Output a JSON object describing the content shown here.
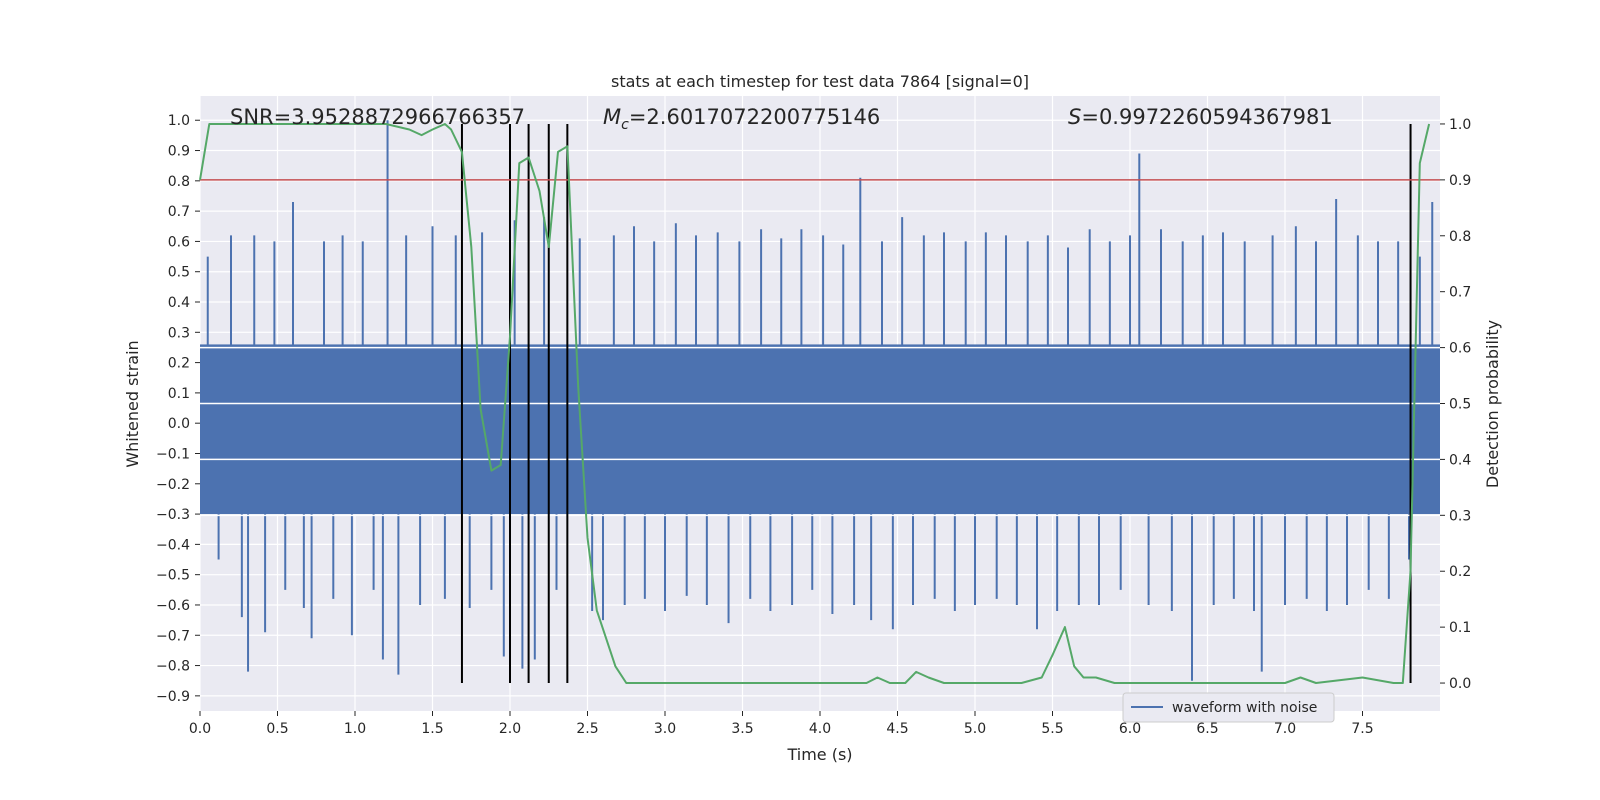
{
  "chart_data": {
    "type": "line",
    "title": "stats at each timestep for test data 7864 [signal=0]",
    "xlabel": "Time (s)",
    "ylabel": "Whitened strain",
    "ylabel_right": "Detection probability",
    "xlim": [
      0.0,
      8.0
    ],
    "ylim": [
      -0.95,
      1.08
    ],
    "ylim_right": [
      -0.05,
      1.05
    ],
    "x_ticks": [
      0.0,
      0.5,
      1.0,
      1.5,
      2.0,
      2.5,
      3.0,
      3.5,
      4.0,
      4.5,
      5.0,
      5.5,
      6.0,
      6.5,
      7.0,
      7.5
    ],
    "x_tick_labels": [
      "0.0",
      "0.5",
      "1.0",
      "1.5",
      "2.0",
      "2.5",
      "3.0",
      "3.5",
      "4.0",
      "4.5",
      "5.0",
      "5.5",
      "6.0",
      "6.5",
      "7.0",
      "7.5"
    ],
    "y_ticks": [
      1.0,
      0.9,
      0.8,
      0.7,
      0.6,
      0.5,
      0.4,
      0.3,
      0.2,
      0.1,
      0.0,
      -0.1,
      -0.2,
      -0.3,
      -0.4,
      -0.5,
      -0.6,
      -0.7,
      -0.8,
      -0.9
    ],
    "y_tick_labels": [
      "1.0",
      "0.9",
      "0.8",
      "0.7",
      "0.6",
      "0.5",
      "0.4",
      "0.3",
      "0.2",
      "0.1",
      "0.0",
      "−0.1",
      "−0.2",
      "−0.3",
      "−0.4",
      "−0.5",
      "−0.6",
      "−0.7",
      "−0.8",
      "−0.9"
    ],
    "y_right_ticks": [
      1.0,
      0.9,
      0.8,
      0.7,
      0.6,
      0.5,
      0.4,
      0.3,
      0.2,
      0.1,
      0.0
    ],
    "y_right_tick_labels": [
      "1.0",
      "0.9",
      "0.8",
      "0.7",
      "0.6",
      "0.5",
      "0.4",
      "0.3",
      "0.2",
      "0.1",
      "0.0"
    ],
    "grid": true,
    "annotations": {
      "snr": "SNR=3.9528872966766357",
      "mc_symbol": "M",
      "mc_subscript": "c",
      "mc_value": "=2.6017072200775146",
      "s_symbol": "S",
      "s_value": "=0.9972260594367981"
    },
    "legend": {
      "location": "lower-right",
      "entries": [
        "waveform with noise"
      ]
    },
    "threshold_right": 0.9,
    "vertical_lines_x": [
      1.69,
      2.0,
      2.12,
      2.25,
      2.37,
      7.81
    ],
    "waveform": {
      "name": "waveform with noise",
      "dense_band": [
        -0.3,
        0.26
      ],
      "spikes": [
        {
          "x": 0.05,
          "y": 0.55
        },
        {
          "x": 0.12,
          "y": -0.45
        },
        {
          "x": 0.2,
          "y": 0.62
        },
        {
          "x": 0.27,
          "y": -0.64
        },
        {
          "x": 0.31,
          "y": -0.82
        },
        {
          "x": 0.35,
          "y": 0.62
        },
        {
          "x": 0.42,
          "y": -0.69
        },
        {
          "x": 0.48,
          "y": 0.6
        },
        {
          "x": 0.55,
          "y": -0.55
        },
        {
          "x": 0.6,
          "y": 0.73
        },
        {
          "x": 0.67,
          "y": -0.61
        },
        {
          "x": 0.72,
          "y": -0.71
        },
        {
          "x": 0.8,
          "y": 0.6
        },
        {
          "x": 0.86,
          "y": -0.58
        },
        {
          "x": 0.92,
          "y": 0.62
        },
        {
          "x": 0.98,
          "y": -0.7
        },
        {
          "x": 1.05,
          "y": 0.6
        },
        {
          "x": 1.12,
          "y": -0.55
        },
        {
          "x": 1.18,
          "y": -0.78
        },
        {
          "x": 1.21,
          "y": 1.0
        },
        {
          "x": 1.28,
          "y": -0.83
        },
        {
          "x": 1.33,
          "y": 0.62
        },
        {
          "x": 1.42,
          "y": -0.6
        },
        {
          "x": 1.5,
          "y": 0.65
        },
        {
          "x": 1.58,
          "y": -0.58
        },
        {
          "x": 1.65,
          "y": 0.62
        },
        {
          "x": 1.74,
          "y": -0.61
        },
        {
          "x": 1.82,
          "y": 0.63
        },
        {
          "x": 1.88,
          "y": -0.55
        },
        {
          "x": 1.96,
          "y": -0.77
        },
        {
          "x": 2.03,
          "y": 0.67
        },
        {
          "x": 2.08,
          "y": -0.81
        },
        {
          "x": 2.16,
          "y": -0.78
        },
        {
          "x": 2.22,
          "y": 0.68
        },
        {
          "x": 2.3,
          "y": -0.55
        },
        {
          "x": 2.45,
          "y": 0.61
        },
        {
          "x": 2.53,
          "y": -0.62
        },
        {
          "x": 2.6,
          "y": -0.65
        },
        {
          "x": 2.67,
          "y": 0.62
        },
        {
          "x": 2.74,
          "y": -0.6
        },
        {
          "x": 2.8,
          "y": 0.65
        },
        {
          "x": 2.87,
          "y": -0.58
        },
        {
          "x": 2.93,
          "y": 0.6
        },
        {
          "x": 3.0,
          "y": -0.62
        },
        {
          "x": 3.07,
          "y": 0.66
        },
        {
          "x": 3.14,
          "y": -0.57
        },
        {
          "x": 3.2,
          "y": 0.62
        },
        {
          "x": 3.27,
          "y": -0.6
        },
        {
          "x": 3.34,
          "y": 0.63
        },
        {
          "x": 3.41,
          "y": -0.66
        },
        {
          "x": 3.48,
          "y": 0.6
        },
        {
          "x": 3.55,
          "y": -0.58
        },
        {
          "x": 3.62,
          "y": 0.64
        },
        {
          "x": 3.68,
          "y": -0.62
        },
        {
          "x": 3.75,
          "y": 0.61
        },
        {
          "x": 3.82,
          "y": -0.6
        },
        {
          "x": 3.88,
          "y": 0.64
        },
        {
          "x": 3.95,
          "y": -0.55
        },
        {
          "x": 4.02,
          "y": 0.62
        },
        {
          "x": 4.08,
          "y": -0.63
        },
        {
          "x": 4.15,
          "y": 0.59
        },
        {
          "x": 4.22,
          "y": -0.6
        },
        {
          "x": 4.26,
          "y": 0.81
        },
        {
          "x": 4.33,
          "y": -0.65
        },
        {
          "x": 4.4,
          "y": 0.6
        },
        {
          "x": 4.47,
          "y": -0.68
        },
        {
          "x": 4.53,
          "y": 0.68
        },
        {
          "x": 4.6,
          "y": -0.6
        },
        {
          "x": 4.67,
          "y": 0.62
        },
        {
          "x": 4.74,
          "y": -0.58
        },
        {
          "x": 4.8,
          "y": 0.63
        },
        {
          "x": 4.87,
          "y": -0.62
        },
        {
          "x": 4.94,
          "y": 0.6
        },
        {
          "x": 5.0,
          "y": -0.6
        },
        {
          "x": 5.07,
          "y": 0.63
        },
        {
          "x": 5.14,
          "y": -0.58
        },
        {
          "x": 5.2,
          "y": 0.62
        },
        {
          "x": 5.27,
          "y": -0.6
        },
        {
          "x": 5.34,
          "y": 0.6
        },
        {
          "x": 5.4,
          "y": -0.68
        },
        {
          "x": 5.47,
          "y": 0.62
        },
        {
          "x": 5.53,
          "y": -0.62
        },
        {
          "x": 5.6,
          "y": 0.58
        },
        {
          "x": 5.67,
          "y": -0.6
        },
        {
          "x": 5.74,
          "y": 0.64
        },
        {
          "x": 5.8,
          "y": -0.6
        },
        {
          "x": 5.87,
          "y": 0.6
        },
        {
          "x": 5.94,
          "y": -0.55
        },
        {
          "x": 6.0,
          "y": 0.62
        },
        {
          "x": 6.06,
          "y": 0.89
        },
        {
          "x": 6.12,
          "y": -0.6
        },
        {
          "x": 6.2,
          "y": 0.64
        },
        {
          "x": 6.27,
          "y": -0.62
        },
        {
          "x": 6.34,
          "y": 0.6
        },
        {
          "x": 6.4,
          "y": -0.85
        },
        {
          "x": 6.47,
          "y": 0.62
        },
        {
          "x": 6.54,
          "y": -0.6
        },
        {
          "x": 6.6,
          "y": 0.63
        },
        {
          "x": 6.67,
          "y": -0.58
        },
        {
          "x": 6.74,
          "y": 0.6
        },
        {
          "x": 6.8,
          "y": -0.62
        },
        {
          "x": 6.85,
          "y": -0.82
        },
        {
          "x": 6.92,
          "y": 0.62
        },
        {
          "x": 7.0,
          "y": -0.6
        },
        {
          "x": 7.07,
          "y": 0.65
        },
        {
          "x": 7.14,
          "y": -0.58
        },
        {
          "x": 7.2,
          "y": 0.6
        },
        {
          "x": 7.27,
          "y": -0.62
        },
        {
          "x": 7.33,
          "y": 0.74
        },
        {
          "x": 7.4,
          "y": -0.6
        },
        {
          "x": 7.47,
          "y": 0.62
        },
        {
          "x": 7.54,
          "y": -0.55
        },
        {
          "x": 7.6,
          "y": 0.6
        },
        {
          "x": 7.67,
          "y": -0.58
        },
        {
          "x": 7.73,
          "y": 0.6
        },
        {
          "x": 7.8,
          "y": -0.45
        },
        {
          "x": 7.87,
          "y": 0.55
        },
        {
          "x": 7.95,
          "y": 0.73
        }
      ]
    },
    "detection_probability": {
      "x": [
        0.0,
        0.06,
        0.12,
        0.2,
        0.3,
        0.5,
        0.8,
        1.0,
        1.2,
        1.35,
        1.43,
        1.5,
        1.58,
        1.62,
        1.69,
        1.75,
        1.81,
        1.88,
        1.94,
        2.0,
        2.06,
        2.12,
        2.19,
        2.25,
        2.31,
        2.37,
        2.44,
        2.5,
        2.56,
        2.62,
        2.68,
        2.75,
        2.85,
        3.0,
        3.2,
        3.5,
        4.0,
        4.3,
        4.37,
        4.45,
        4.55,
        4.62,
        4.7,
        4.8,
        5.0,
        5.3,
        5.43,
        5.5,
        5.58,
        5.64,
        5.7,
        5.78,
        5.9,
        6.0,
        6.5,
        7.0,
        7.1,
        7.2,
        7.5,
        7.7,
        7.76,
        7.81,
        7.87,
        7.93
      ],
      "y": [
        0.9,
        1.0,
        1.0,
        1.0,
        1.0,
        1.0,
        1.0,
        1.0,
        1.0,
        0.99,
        0.98,
        0.99,
        1.0,
        0.99,
        0.95,
        0.78,
        0.49,
        0.38,
        0.39,
        0.62,
        0.93,
        0.94,
        0.88,
        0.78,
        0.95,
        0.96,
        0.53,
        0.26,
        0.13,
        0.08,
        0.03,
        0.0,
        0.0,
        0.0,
        0.0,
        0.0,
        0.0,
        0.0,
        0.01,
        0.0,
        0.0,
        0.02,
        0.01,
        0.0,
        0.0,
        0.0,
        0.01,
        0.05,
        0.1,
        0.03,
        0.01,
        0.01,
        0.0,
        0.0,
        0.0,
        0.0,
        0.01,
        0.0,
        0.01,
        0.0,
        0.0,
        0.2,
        0.93,
        1.0
      ]
    },
    "colors": {
      "background": "#eaeaf2",
      "grid": "#ffffff",
      "waveform": "#4c72b0",
      "probability": "#55a868",
      "threshold": "#c44e52",
      "vertical_lines": "#000000",
      "text": "#262626"
    }
  }
}
